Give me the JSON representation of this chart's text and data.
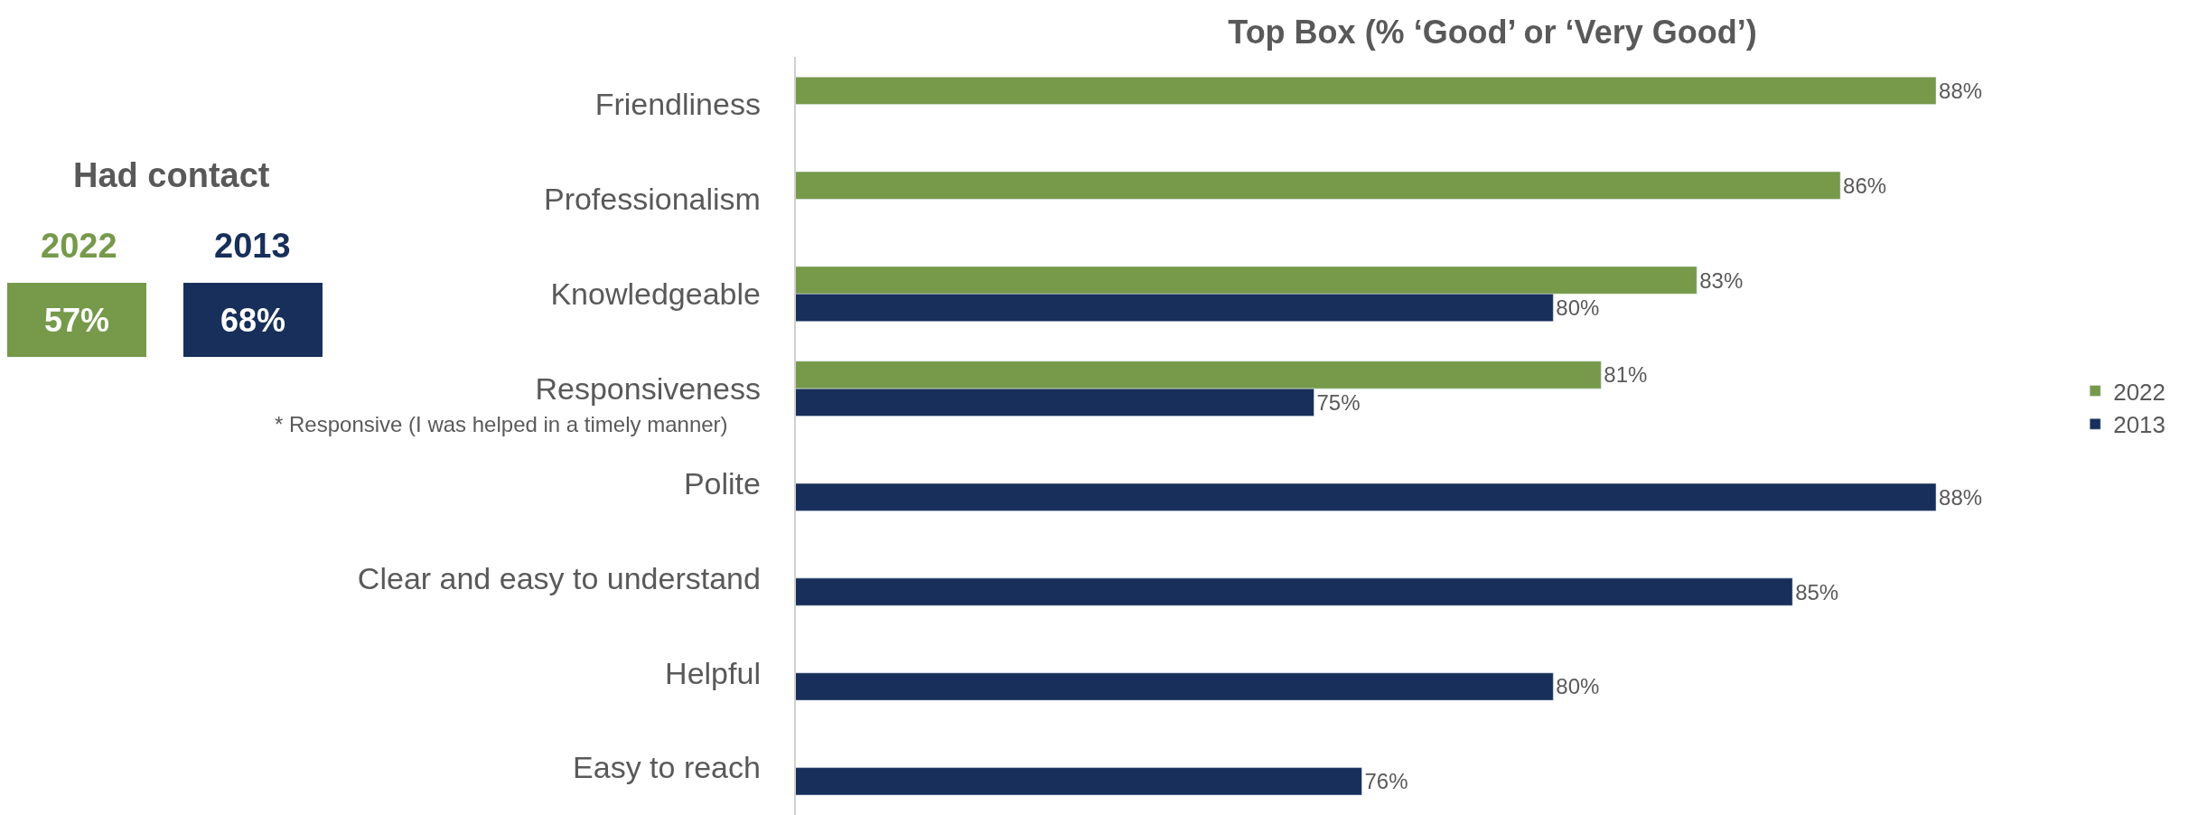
{
  "chart_data": {
    "type": "bar",
    "orientation": "horizontal",
    "title": "Top Box (% ‘Good’ or ‘Very Good’)",
    "categories": [
      "Friendliness",
      "Professionalism",
      "Knowledgeable",
      "Responsiveness",
      "Polite",
      "Clear and easy to understand",
      "Helpful",
      "Easy to reach"
    ],
    "series": [
      {
        "name": "2022",
        "color": "#76994a",
        "values": [
          88,
          86,
          83,
          81,
          null,
          null,
          null,
          null
        ],
        "value_labels": [
          "88%",
          "86%",
          "83%",
          "81%",
          null,
          null,
          null,
          null
        ]
      },
      {
        "name": "2013",
        "color": "#172f5a",
        "values": [
          null,
          null,
          80,
          75,
          88,
          85,
          80,
          76
        ],
        "value_labels": [
          null,
          null,
          "80%",
          "75%",
          "88%",
          "85%",
          "80%",
          "76%"
        ]
      }
    ],
    "legend": "right",
    "tick_labels": "y",
    "annotations": [
      "Had contact",
      "2022",
      "2013",
      "57%",
      "68%",
      "* Responsive (I was helped in a timely manner)"
    ]
  }
}
